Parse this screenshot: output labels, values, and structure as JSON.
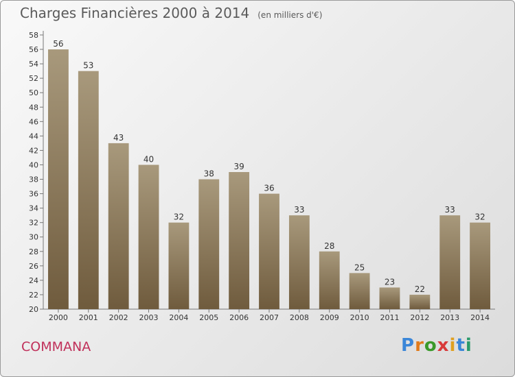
{
  "header": {
    "title": "Charges Financières 2000 à 2014",
    "subtitle": "(en milliers d'€)"
  },
  "footer": {
    "commune": "COMMANA",
    "logo_text": "Proxiti"
  },
  "colors": {
    "bar_top": "#a8997c",
    "bar_bottom": "#6f5b3d",
    "commune_text": "#c0305a",
    "logo_letters": [
      "#3a86d8",
      "#e07a1a",
      "#3a9a2a",
      "#d83a3a",
      "#e0a020",
      "#3a86d8",
      "#2a9a6a"
    ]
  },
  "chart_data": {
    "type": "bar",
    "title": "Charges Financières 2000 à 2014",
    "subtitle": "(en milliers d'€)",
    "categories": [
      "2000",
      "2001",
      "2002",
      "2003",
      "2004",
      "2005",
      "2006",
      "2007",
      "2008",
      "2009",
      "2010",
      "2011",
      "2012",
      "2013",
      "2014"
    ],
    "values": [
      56,
      53,
      43,
      40,
      32,
      38,
      39,
      36,
      33,
      28,
      25,
      23,
      22,
      33,
      32
    ],
    "ylim": [
      20,
      58
    ],
    "yticks": [
      20,
      22,
      24,
      26,
      28,
      30,
      32,
      34,
      36,
      38,
      40,
      42,
      44,
      46,
      48,
      50,
      52,
      54,
      56,
      58
    ],
    "grid": false,
    "data_labels": true
  }
}
